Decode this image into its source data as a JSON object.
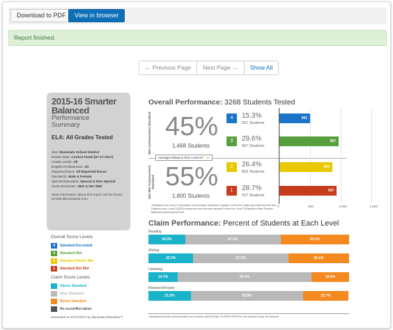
{
  "toolbar": {
    "download_label": "Download to PDF",
    "view_label": "View in browser"
  },
  "alert": {
    "text": "Report finished."
  },
  "pager": {
    "prev": "← Previous Page",
    "next": "Next Page →",
    "all": "Show All"
  },
  "side": {
    "title1": "2015-16 Smarter",
    "title2": "Balanced",
    "sub1": "Performance",
    "sub2": "Summary",
    "ela": "ELA: All Grades Tested",
    "info": [
      {
        "k": "Site: ",
        "v": "Illuminate School District"
      },
      {
        "k": "Roster Date: ",
        "v": "Control Panel (07-17-2017)"
      },
      {
        "k": "Grade Levels: ",
        "v": "All"
      },
      {
        "k": "English Proficiencies: ",
        "v": "All"
      },
      {
        "k": "Reported Race: ",
        "v": "All Reported Races"
      },
      {
        "k": "Gender(s): ",
        "v": "Male & Female"
      },
      {
        "k": "Special Education: ",
        "v": "Special & Non Special"
      },
      {
        "k": "Socio-Economic: ",
        "v": "SED & Not SED"
      }
    ],
    "more": "More information about this report can be found at help.illuminateed.com."
  },
  "legend": {
    "overall_head": "Overall Score Levels",
    "overall": [
      {
        "n": "4",
        "label": "Standard Exceeded",
        "color": "#1a74c8"
      },
      {
        "n": "3",
        "label": "Standard Met",
        "color": "#58a03e"
      },
      {
        "n": "2",
        "label": "Standard Nearly Met",
        "color": "#e8c800"
      },
      {
        "n": "1",
        "label": "Standard Not Met",
        "color": "#c63d1e"
      }
    ],
    "claim_head": "Claim Score Levels",
    "claim": [
      {
        "label": "Above Standard",
        "color": "#1ab3c9"
      },
      {
        "label": "Near Standard",
        "color": "#b9b9b9"
      },
      {
        "label": "Below Standard",
        "color": "#f48a1f"
      },
      {
        "label": "No score/Not taken",
        "color": "#555555"
      }
    ],
    "generated": "Generated on 07/17/2017 by Illuminate Education™"
  },
  "overall": {
    "title_bold": "Overall Performance:",
    "title_rest": "3268 Students Tested",
    "met_label": "Met Achievement Standard",
    "notmet_label": "Not Met Achievement Standard",
    "met_pct": "45%",
    "met_students": "1,468 Students",
    "notmet_pct": "55%",
    "notmet_students": "1,800 Students",
    "avg_label": "Average Distance from Level 3*:",
    "avg_value": "-15",
    "levels": [
      {
        "n": "4",
        "pct": "15.3%",
        "students": "501 Students",
        "value": 501,
        "color": "#1a74c8"
      },
      {
        "n": "3",
        "pct": "29.6%",
        "students": "967 Students",
        "value": 967,
        "color": "#58a03e"
      },
      {
        "n": "2",
        "pct": "26.4%",
        "students": "863 Students",
        "value": 863,
        "color": "#e8c800"
      },
      {
        "n": "1",
        "pct": "28.7%",
        "students": "937 Students",
        "value": 937,
        "color": "#c63d1e"
      }
    ],
    "axis_ticks": [
      "0",
      "500",
      "1,000",
      "1,500"
    ],
    "axis_max": 1500,
    "footnote": "*Distance from Level 3 calculation only includes students in grades 3-8 for the roster year that took the test. Distance from Level 3 (DFS) measures how far each student is from the Level 3 (Standard Met) Smarter Balanced performance level."
  },
  "claims": {
    "title_bold": "Claim Performance:",
    "title_rest": "Percent of Students at Each Level",
    "rows": [
      {
        "label": "Reading",
        "above": 18.3,
        "near": 47.5,
        "below": 34.1
      },
      {
        "label": "Writing",
        "above": 22.3,
        "near": 47.5,
        "below": 30.1
      },
      {
        "label": "Listening",
        "above": 14.7,
        "near": 66.6,
        "below": 18.6
      },
      {
        "label": "Research/Inquiry",
        "above": 21.2,
        "near": 55.8,
        "below": 22.7
      }
    ],
    "footnote": "Calculations include students tested out of district. ADDITIONAL FILTERS APPLIED: Add Student Group: All Students"
  }
}
